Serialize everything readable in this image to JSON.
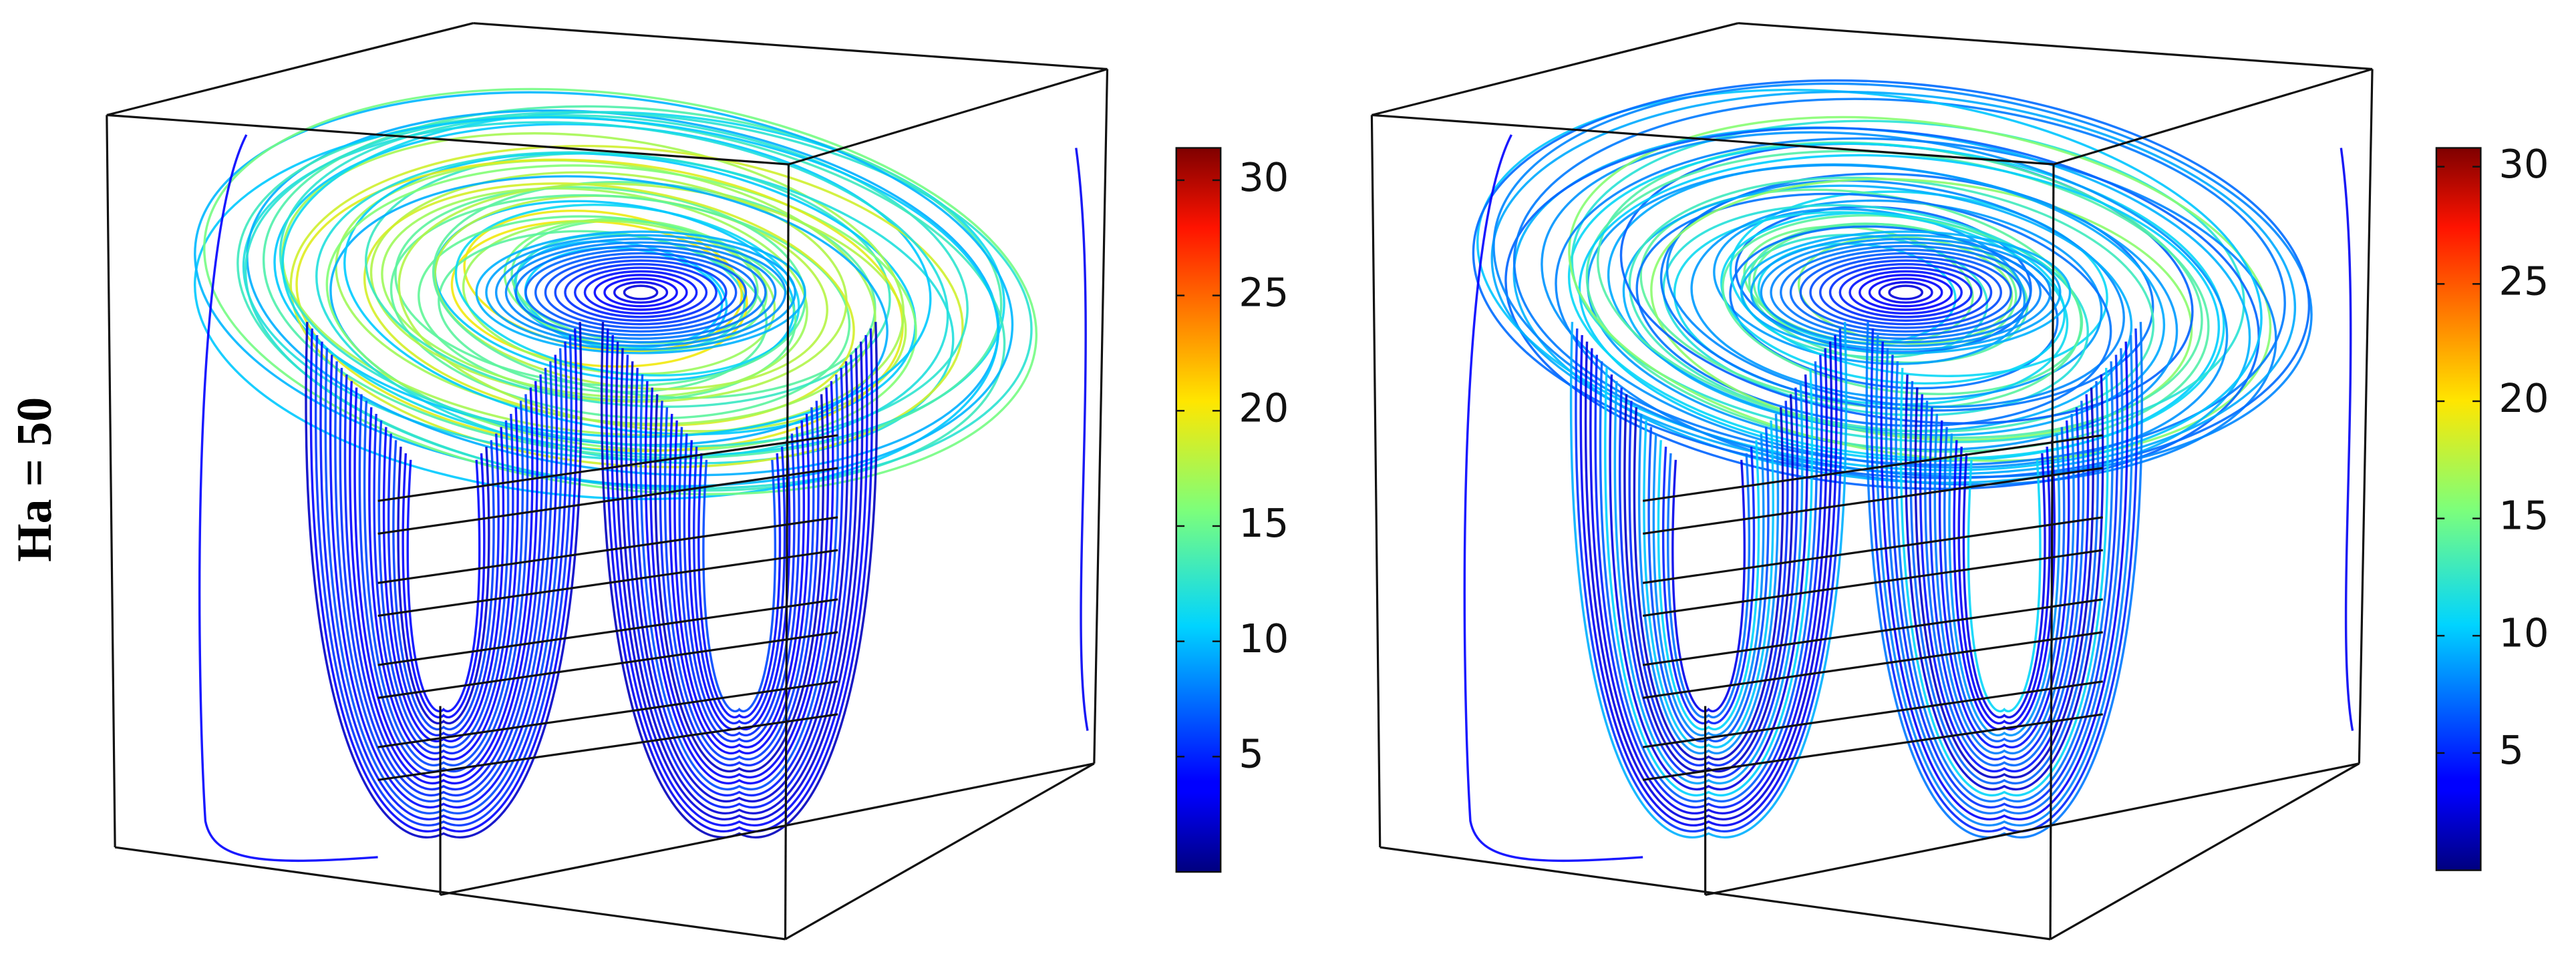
{
  "row_label": "Ha = 50",
  "panels": [
    {
      "colorbar": {
        "colormap": "jet",
        "range": [
          0,
          31.4
        ],
        "ticks": [
          5,
          10,
          15,
          20,
          25,
          30
        ]
      }
    },
    {
      "colorbar": {
        "colormap": "jet",
        "range": [
          0,
          30.8
        ],
        "ticks": [
          5,
          10,
          15,
          20,
          25,
          30
        ]
      }
    }
  ]
}
